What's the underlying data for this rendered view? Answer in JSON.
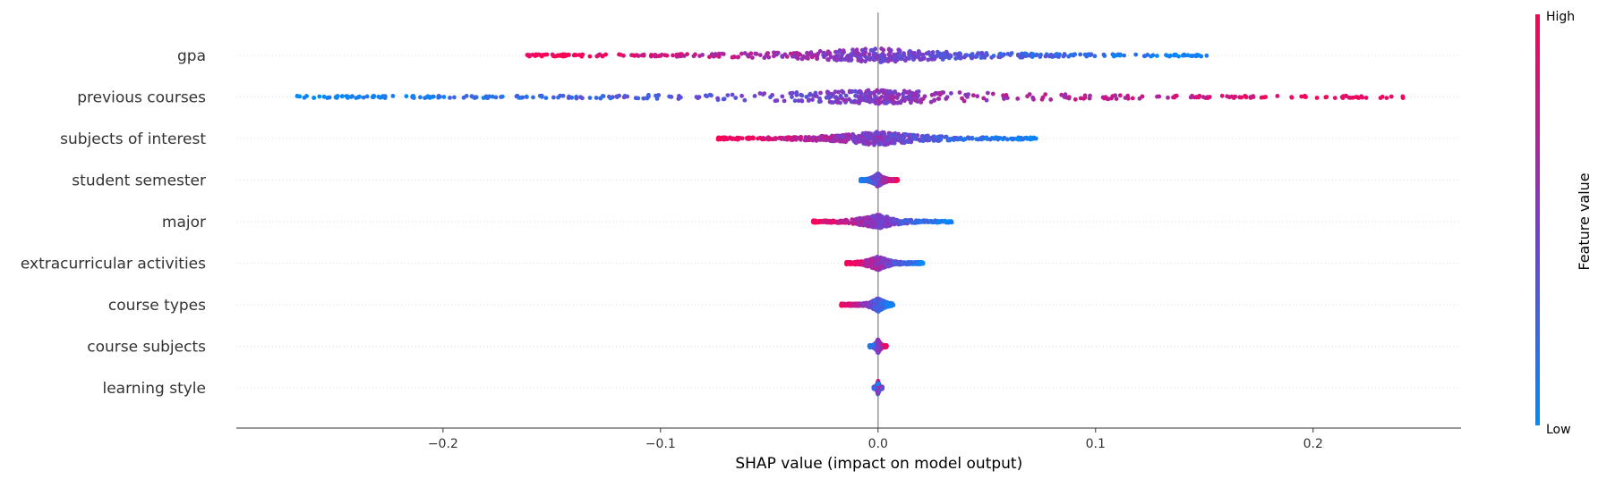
{
  "chart_data": {
    "type": "scatter",
    "subtype": "shap-beeswarm",
    "xlabel": "SHAP value (impact on model output)",
    "xlim": [
      -0.295,
      0.268
    ],
    "x_ticks": [
      {
        "value": -0.2,
        "label": "−0.2"
      },
      {
        "value": -0.1,
        "label": "−0.1"
      },
      {
        "value": 0.0,
        "label": "0.0"
      },
      {
        "value": 0.1,
        "label": "0.1"
      },
      {
        "value": 0.2,
        "label": "0.2"
      }
    ],
    "features": [
      {
        "name": "gpa",
        "min": -0.163,
        "max": 0.152,
        "orientation": "high-negative",
        "spread": 0.06
      },
      {
        "name": "previous courses",
        "min": -0.268,
        "max": 0.243,
        "orientation": "high-positive",
        "spread": 0.05
      },
      {
        "name": "subjects of interest",
        "min": -0.074,
        "max": 0.073,
        "orientation": "high-negative",
        "spread": 0.04
      },
      {
        "name": "student semester",
        "min": -0.008,
        "max": 0.009,
        "orientation": "high-positive",
        "spread": 0.01
      },
      {
        "name": "major",
        "min": -0.03,
        "max": 0.034,
        "orientation": "high-negative",
        "spread": 0.012
      },
      {
        "name": "extracurricular activities",
        "min": -0.015,
        "max": 0.021,
        "orientation": "high-negative",
        "spread": 0.006
      },
      {
        "name": "course types",
        "min": -0.017,
        "max": 0.007,
        "orientation": "high-negative",
        "spread": 0.004
      },
      {
        "name": "course subjects",
        "min": -0.004,
        "max": 0.004,
        "orientation": "high-positive",
        "spread": 0.0015
      },
      {
        "name": "learning style",
        "min": -0.002,
        "max": 0.002,
        "orientation": "mixed",
        "spread": 0.001
      }
    ],
    "colorbar": {
      "title": "Feature value",
      "high_label": "High",
      "low_label": "Low",
      "high_color": "#ff0052",
      "low_color": "#008bfb"
    },
    "grid": false,
    "zero_line": true
  }
}
